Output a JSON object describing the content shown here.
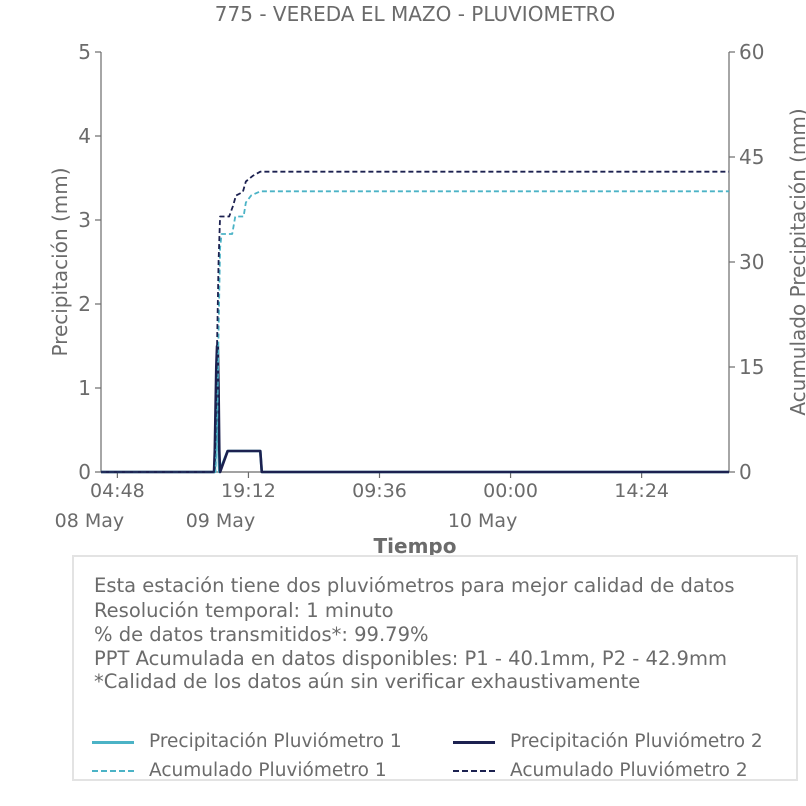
{
  "chart_data": {
    "type": "line",
    "title": "775 - VEREDA EL MAZO - PLUVIOMETRO",
    "xlabel": "Tiempo",
    "ylabel": "Precipitación (mm)",
    "y2label": "Acumulado Precipitación (mm)",
    "ylim": [
      0,
      5
    ],
    "y2lim": [
      0,
      60
    ],
    "yticks": [
      "0",
      "1",
      "2",
      "3",
      "4",
      "5"
    ],
    "y2ticks": [
      "0",
      "15",
      "30",
      "45",
      "60"
    ],
    "xlim": [
      "2025-05-08 03:00",
      "2025-05-11 00:00"
    ],
    "xticks": [
      {
        "time": "04:48",
        "date": "08 May"
      },
      {
        "time": "19:12",
        "date": "09 May"
      },
      {
        "time": "09:36",
        "date": ""
      },
      {
        "time": "00:00",
        "date": "10 May"
      },
      {
        "time": "14:24",
        "date": ""
      }
    ],
    "grid": false,
    "legend_position": "bottom",
    "colors": {
      "p1": "#4bb3c6",
      "p2": "#1c2150",
      "axis": "#6b6b6b"
    },
    "series": [
      {
        "name": "Precipitación Pluviómetro 1",
        "style": "solid",
        "axis": "left",
        "points": [
          [
            "2025-05-08 03:00",
            0
          ],
          [
            "2025-05-08 15:30",
            0
          ],
          [
            "2025-05-08 15:35",
            0.25
          ],
          [
            "2025-05-08 15:40",
            0.75
          ],
          [
            "2025-05-08 15:45",
            1.25
          ],
          [
            "2025-05-08 15:50",
            1.5
          ],
          [
            "2025-05-08 15:55",
            0.25
          ],
          [
            "2025-05-08 16:00",
            0
          ],
          [
            "2025-05-08 16:55",
            0.25
          ],
          [
            "2025-05-08 17:40",
            0.25
          ],
          [
            "2025-05-08 17:55",
            0.25
          ],
          [
            "2025-05-08 18:20",
            0.25
          ],
          [
            "2025-05-08 18:35",
            0.25
          ],
          [
            "2025-05-08 18:50",
            0.25
          ],
          [
            "2025-05-08 19:00",
            0.25
          ],
          [
            "2025-05-08 20:30",
            0.25
          ],
          [
            "2025-05-08 20:40",
            0
          ],
          [
            "2025-05-11 00:00",
            0
          ]
        ]
      },
      {
        "name": "Precipitación Pluviómetro 2",
        "style": "solid",
        "axis": "left",
        "points": [
          [
            "2025-05-08 03:00",
            0
          ],
          [
            "2025-05-08 15:25",
            0
          ],
          [
            "2025-05-08 15:30",
            0.25
          ],
          [
            "2025-05-08 15:35",
            0.75
          ],
          [
            "2025-05-08 15:40",
            1.25
          ],
          [
            "2025-05-08 15:45",
            1.5
          ],
          [
            "2025-05-08 15:50",
            1.5
          ],
          [
            "2025-05-08 15:55",
            1.0
          ],
          [
            "2025-05-08 16:00",
            0.25
          ],
          [
            "2025-05-08 16:05",
            0
          ],
          [
            "2025-05-08 16:55",
            0.25
          ],
          [
            "2025-05-08 17:10",
            0.25
          ],
          [
            "2025-05-08 17:25",
            0.25
          ],
          [
            "2025-05-08 17:40",
            0.25
          ],
          [
            "2025-05-08 17:55",
            0.25
          ],
          [
            "2025-05-08 18:20",
            0.25
          ],
          [
            "2025-05-08 18:35",
            0.25
          ],
          [
            "2025-05-08 18:50",
            0.25
          ],
          [
            "2025-05-08 19:05",
            0.25
          ],
          [
            "2025-05-08 20:30",
            0.25
          ],
          [
            "2025-05-08 20:40",
            0
          ],
          [
            "2025-05-11 00:00",
            0
          ]
        ]
      },
      {
        "name": "Acumulado Pluviómetro 1",
        "style": "dashed",
        "axis": "right",
        "points": [
          [
            "2025-05-08 03:00",
            0
          ],
          [
            "2025-05-08 15:35",
            0
          ],
          [
            "2025-05-08 15:45",
            6
          ],
          [
            "2025-05-08 15:55",
            20
          ],
          [
            "2025-05-08 16:05",
            32
          ],
          [
            "2025-05-08 16:15",
            34
          ],
          [
            "2025-05-08 17:25",
            34
          ],
          [
            "2025-05-08 17:45",
            36.5
          ],
          [
            "2025-05-08 18:40",
            36.5
          ],
          [
            "2025-05-08 18:55",
            38.5
          ],
          [
            "2025-05-08 19:30",
            39.5
          ],
          [
            "2025-05-08 20:30",
            40.1
          ],
          [
            "2025-05-11 00:00",
            40.1
          ]
        ]
      },
      {
        "name": "Acumulado Pluviómetro 2",
        "style": "dashed",
        "axis": "right",
        "points": [
          [
            "2025-05-08 03:00",
            0
          ],
          [
            "2025-05-08 15:25",
            0
          ],
          [
            "2025-05-08 15:35",
            5
          ],
          [
            "2025-05-08 15:45",
            18
          ],
          [
            "2025-05-08 15:55",
            30
          ],
          [
            "2025-05-08 16:05",
            36.5
          ],
          [
            "2025-05-08 17:05",
            36.5
          ],
          [
            "2025-05-08 17:30",
            38
          ],
          [
            "2025-05-08 17:50",
            39.5
          ],
          [
            "2025-05-08 18:35",
            40
          ],
          [
            "2025-05-08 18:55",
            41.5
          ],
          [
            "2025-05-08 19:40",
            42.3
          ],
          [
            "2025-05-08 20:30",
            42.9
          ],
          [
            "2025-05-11 00:00",
            42.9
          ]
        ]
      }
    ],
    "legend": [
      {
        "label": "Precipitación Pluviómetro 1",
        "color": "#4bb3c6",
        "style": "solid"
      },
      {
        "label": "Precipitación Pluviómetro 2",
        "color": "#1c2150",
        "style": "solid"
      },
      {
        "label": "Acumulado Pluviómetro 1",
        "color": "#4bb3c6",
        "style": "dashed"
      },
      {
        "label": "Acumulado Pluviómetro 2",
        "color": "#1c2150",
        "style": "dashed"
      }
    ]
  },
  "info": {
    "lines": [
      "Esta estación tiene dos pluviómetros para mejor calidad de datos",
      "Resolución temporal: 1 minuto",
      "% de datos transmitidos*: 99.79%",
      "PPT Acumulada en datos disponibles: P1 - 40.1mm, P2 - 42.9mm",
      "*Calidad de los datos aún sin verificar exhaustivamente"
    ]
  }
}
